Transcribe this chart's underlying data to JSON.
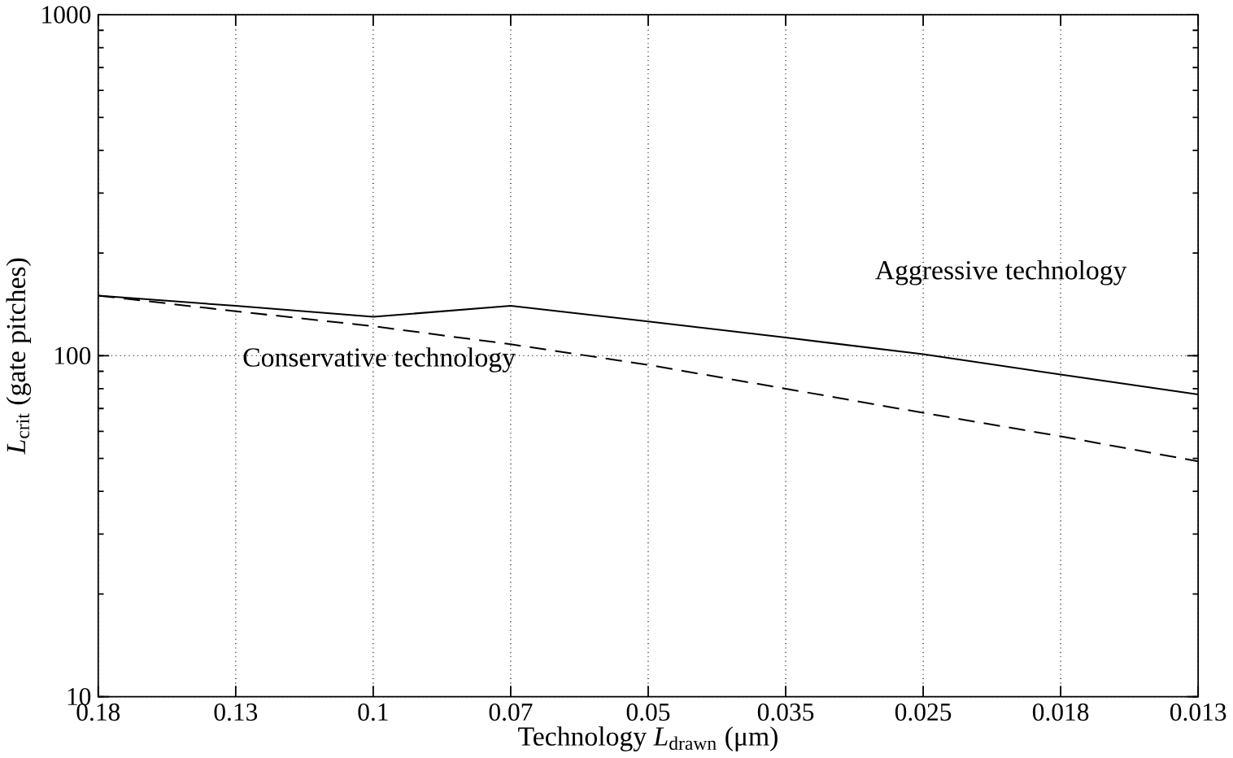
{
  "chart_data": {
    "type": "line",
    "xlabel": "Technology *L*$_{drawn}$ (μm)",
    "ylabel": "*L*$_{crit}$ (gate pitches)",
    "categories": [
      "0.18",
      "0.13",
      "0.1",
      "0.07",
      "0.05",
      "0.035",
      "0.025",
      "0.018",
      "0.013"
    ],
    "series": [
      {
        "name": "Aggressive technology",
        "color": "#000000",
        "line_style": "solid",
        "values": [
          150,
          140,
          130,
          140,
          126,
          113,
          101,
          88,
          77
        ]
      },
      {
        "name": "Conservative technology",
        "color": "#000000",
        "line_style": "dashed",
        "values": [
          150,
          135,
          122,
          108,
          94,
          80,
          68,
          58,
          49
        ]
      }
    ],
    "log": "y",
    "ylim": [
      10,
      1000
    ],
    "yticks": [
      10,
      100,
      1000
    ],
    "grid": true
  }
}
